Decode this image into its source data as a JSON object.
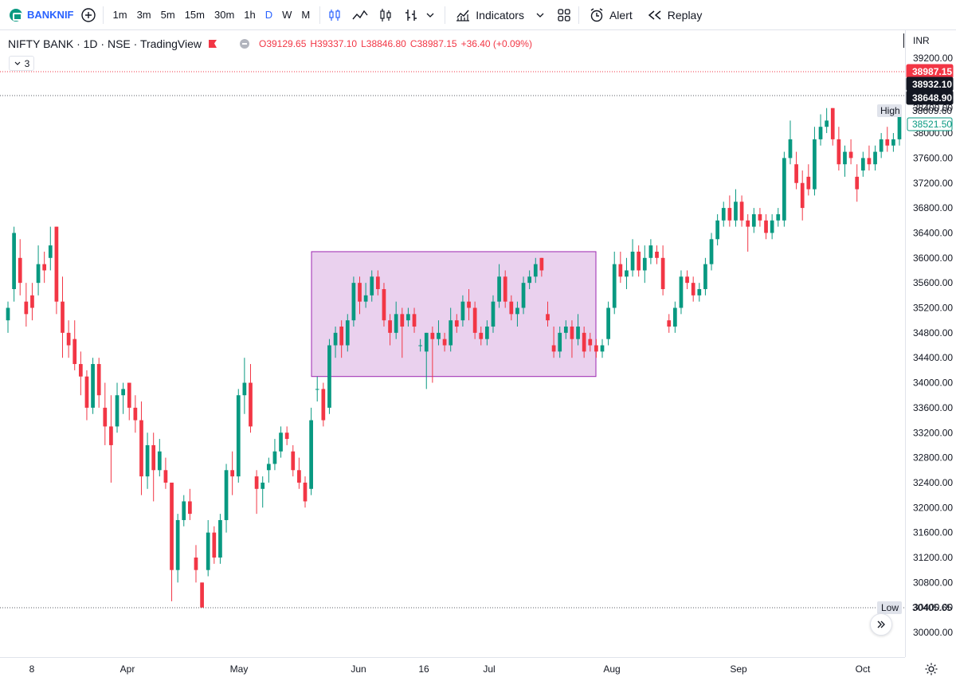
{
  "toolbar": {
    "symbol": "BANKNIF",
    "intervals": [
      "1m",
      "3m",
      "5m",
      "15m",
      "30m",
      "1h",
      "D",
      "W",
      "M"
    ],
    "active_interval": "D",
    "indicators_label": "Indicators",
    "alert_label": "Alert",
    "replay_label": "Replay"
  },
  "legend": {
    "title": "NIFTY BANK · 1D · NSE · TradingView",
    "open": "O39129.65",
    "high": "H39337.10",
    "low": "L38846.80",
    "close": "C38987.15",
    "change": "+36.40 (+0.09%)",
    "collapse_count": "3"
  },
  "price_axis": {
    "currency": "INR",
    "last_price_label": "38987.15",
    "label_2": "38932.10",
    "label_3": "38648.90",
    "high_tag": "High",
    "high_value": "38609.60",
    "green_label": "38521.50",
    "low_tag": "Low",
    "low_value": "30405.65"
  },
  "colors": {
    "up": "#089981",
    "down": "#f23645",
    "rect_fill": "#e1bee7",
    "rect_border": "#9c27b0",
    "accent": "#2962ff"
  },
  "chart_data": {
    "type": "candlestick",
    "yticks": [
      39200,
      38800,
      38400,
      38000,
      37600,
      37200,
      36800,
      36400,
      36000,
      35600,
      35200,
      34800,
      34400,
      34000,
      33600,
      33200,
      32800,
      32400,
      32000,
      31600,
      31200,
      30800,
      30400,
      30000
    ],
    "ylim": [
      29800,
      39400
    ],
    "xticks": [
      "8",
      "Apr",
      "May",
      "Jun",
      "16",
      "Jul",
      "Aug",
      "Sep",
      "Oct"
    ],
    "annotations": [
      {
        "type": "rectangle",
        "from_price": 34100,
        "to_price": 36100
      }
    ],
    "candles": [
      {
        "o": 35000,
        "h": 35300,
        "l": 34800,
        "c": 35200
      },
      {
        "o": 35500,
        "h": 36500,
        "l": 35300,
        "c": 36400
      },
      {
        "o": 36000,
        "h": 36300,
        "l": 35400,
        "c": 35600
      },
      {
        "o": 35300,
        "h": 35600,
        "l": 34900,
        "c": 35100
      },
      {
        "o": 35400,
        "h": 35600,
        "l": 35000,
        "c": 35200
      },
      {
        "o": 35600,
        "h": 36200,
        "l": 35400,
        "c": 35900
      },
      {
        "o": 35900,
        "h": 36100,
        "l": 35600,
        "c": 35800
      },
      {
        "o": 36000,
        "h": 36500,
        "l": 35800,
        "c": 36200
      },
      {
        "o": 36500,
        "h": 36500,
        "l": 35100,
        "c": 35300
      },
      {
        "o": 35300,
        "h": 35700,
        "l": 34400,
        "c": 34800
      },
      {
        "o": 34800,
        "h": 35000,
        "l": 34400,
        "c": 34600
      },
      {
        "o": 34700,
        "h": 35000,
        "l": 34200,
        "c": 34300
      },
      {
        "o": 34300,
        "h": 34500,
        "l": 33800,
        "c": 34100
      },
      {
        "o": 34100,
        "h": 34200,
        "l": 33400,
        "c": 33600
      },
      {
        "o": 33600,
        "h": 34400,
        "l": 33500,
        "c": 34300
      },
      {
        "o": 34300,
        "h": 34400,
        "l": 33600,
        "c": 33800
      },
      {
        "o": 33600,
        "h": 34000,
        "l": 33000,
        "c": 33300
      },
      {
        "o": 33300,
        "h": 33800,
        "l": 32400,
        "c": 33000
      },
      {
        "o": 33300,
        "h": 34000,
        "l": 33200,
        "c": 33800
      },
      {
        "o": 33800,
        "h": 34000,
        "l": 33500,
        "c": 33900
      },
      {
        "o": 34000,
        "h": 34000,
        "l": 33400,
        "c": 33600
      },
      {
        "o": 33600,
        "h": 33800,
        "l": 33200,
        "c": 33400
      },
      {
        "o": 33400,
        "h": 33700,
        "l": 32200,
        "c": 32500
      },
      {
        "o": 32500,
        "h": 33200,
        "l": 32300,
        "c": 33000
      },
      {
        "o": 33000,
        "h": 33200,
        "l": 32100,
        "c": 32600
      },
      {
        "o": 32600,
        "h": 33100,
        "l": 32500,
        "c": 32900
      },
      {
        "o": 32600,
        "h": 32800,
        "l": 32300,
        "c": 32400
      },
      {
        "o": 32400,
        "h": 32400,
        "l": 30500,
        "c": 31000
      },
      {
        "o": 31000,
        "h": 31900,
        "l": 30800,
        "c": 31800
      },
      {
        "o": 31800,
        "h": 32200,
        "l": 31700,
        "c": 32100
      },
      {
        "o": 32100,
        "h": 32300,
        "l": 31800,
        "c": 31900
      },
      {
        "o": 31200,
        "h": 31400,
        "l": 30800,
        "c": 31000
      },
      {
        "o": 30800,
        "h": 30800,
        "l": 30400,
        "c": 30400
      },
      {
        "o": 31000,
        "h": 31800,
        "l": 30900,
        "c": 31600
      },
      {
        "o": 31600,
        "h": 31700,
        "l": 31100,
        "c": 31200
      },
      {
        "o": 31200,
        "h": 31900,
        "l": 31100,
        "c": 31800
      },
      {
        "o": 31800,
        "h": 32700,
        "l": 31600,
        "c": 32600
      },
      {
        "o": 32600,
        "h": 32900,
        "l": 32200,
        "c": 32500
      },
      {
        "o": 32500,
        "h": 33900,
        "l": 32400,
        "c": 33800
      },
      {
        "o": 33800,
        "h": 34400,
        "l": 33500,
        "c": 34000
      },
      {
        "o": 34000,
        "h": 34300,
        "l": 33200,
        "c": 33300
      },
      {
        "o": 32500,
        "h": 32600,
        "l": 31900,
        "c": 32300
      },
      {
        "o": 32300,
        "h": 32500,
        "l": 32000,
        "c": 32400
      },
      {
        "o": 32600,
        "h": 32800,
        "l": 32400,
        "c": 32700
      },
      {
        "o": 32700,
        "h": 33100,
        "l": 32600,
        "c": 32900
      },
      {
        "o": 32900,
        "h": 33300,
        "l": 32800,
        "c": 33200
      },
      {
        "o": 33200,
        "h": 33300,
        "l": 33000,
        "c": 33100
      },
      {
        "o": 32900,
        "h": 33000,
        "l": 32500,
        "c": 32600
      },
      {
        "o": 32600,
        "h": 32800,
        "l": 32300,
        "c": 32400
      },
      {
        "o": 32400,
        "h": 32500,
        "l": 32000,
        "c": 32100
      },
      {
        "o": 32300,
        "h": 33600,
        "l": 32200,
        "c": 33400
      },
      {
        "o": 33900,
        "h": 34100,
        "l": 33700,
        "c": 33900
      },
      {
        "o": 33900,
        "h": 34000,
        "l": 33300,
        "c": 33400
      },
      {
        "o": 33600,
        "h": 34700,
        "l": 33500,
        "c": 34600
      },
      {
        "o": 34600,
        "h": 34900,
        "l": 34400,
        "c": 34800
      },
      {
        "o": 34900,
        "h": 35000,
        "l": 34400,
        "c": 34600
      },
      {
        "o": 34600,
        "h": 35100,
        "l": 34500,
        "c": 35000
      },
      {
        "o": 35000,
        "h": 35700,
        "l": 34900,
        "c": 35600
      },
      {
        "o": 35600,
        "h": 35700,
        "l": 35100,
        "c": 35300
      },
      {
        "o": 35300,
        "h": 35600,
        "l": 35200,
        "c": 35400
      },
      {
        "o": 35400,
        "h": 35800,
        "l": 35300,
        "c": 35700
      },
      {
        "o": 35700,
        "h": 35800,
        "l": 35400,
        "c": 35500
      },
      {
        "o": 35500,
        "h": 35600,
        "l": 34900,
        "c": 35000
      },
      {
        "o": 35000,
        "h": 35100,
        "l": 34600,
        "c": 34800
      },
      {
        "o": 34800,
        "h": 35300,
        "l": 34700,
        "c": 35100
      },
      {
        "o": 35100,
        "h": 35200,
        "l": 34400,
        "c": 34900
      },
      {
        "o": 35000,
        "h": 35200,
        "l": 34900,
        "c": 35100
      },
      {
        "o": 35100,
        "h": 35200,
        "l": 34800,
        "c": 34900
      },
      {
        "o": 34600,
        "h": 34700,
        "l": 34500,
        "c": 34600
      },
      {
        "o": 34500,
        "h": 34800,
        "l": 33900,
        "c": 34800
      },
      {
        "o": 34800,
        "h": 34900,
        "l": 34000,
        "c": 34700
      },
      {
        "o": 34700,
        "h": 35000,
        "l": 34600,
        "c": 34800
      },
      {
        "o": 34700,
        "h": 34800,
        "l": 34500,
        "c": 34600
      },
      {
        "o": 34600,
        "h": 35200,
        "l": 34500,
        "c": 35000
      },
      {
        "o": 35000,
        "h": 35100,
        "l": 34800,
        "c": 34900
      },
      {
        "o": 35000,
        "h": 35400,
        "l": 34900,
        "c": 35300
      },
      {
        "o": 35300,
        "h": 35500,
        "l": 35000,
        "c": 35200
      },
      {
        "o": 35200,
        "h": 35300,
        "l": 34700,
        "c": 34800
      },
      {
        "o": 34800,
        "h": 34900,
        "l": 34600,
        "c": 34700
      },
      {
        "o": 34700,
        "h": 35000,
        "l": 34600,
        "c": 34900
      },
      {
        "o": 34900,
        "h": 35400,
        "l": 34800,
        "c": 35300
      },
      {
        "o": 35300,
        "h": 35900,
        "l": 35200,
        "c": 35700
      },
      {
        "o": 35700,
        "h": 35800,
        "l": 35200,
        "c": 35300
      },
      {
        "o": 35300,
        "h": 35400,
        "l": 35000,
        "c": 35100
      },
      {
        "o": 35100,
        "h": 35300,
        "l": 34900,
        "c": 35200
      },
      {
        "o": 35200,
        "h": 35700,
        "l": 35100,
        "c": 35600
      },
      {
        "o": 35600,
        "h": 35800,
        "l": 35500,
        "c": 35700
      },
      {
        "o": 35700,
        "h": 36000,
        "l": 35600,
        "c": 35900
      },
      {
        "o": 36000,
        "h": 36000,
        "l": 35700,
        "c": 35800
      },
      {
        "o": 35100,
        "h": 35300,
        "l": 34900,
        "c": 35000
      },
      {
        "o": 34600,
        "h": 34900,
        "l": 34400,
        "c": 34500
      },
      {
        "o": 34500,
        "h": 34900,
        "l": 34400,
        "c": 34800
      },
      {
        "o": 34800,
        "h": 35000,
        "l": 34700,
        "c": 34900
      },
      {
        "o": 34900,
        "h": 35000,
        "l": 34400,
        "c": 34700
      },
      {
        "o": 34700,
        "h": 35100,
        "l": 34600,
        "c": 34900
      },
      {
        "o": 34800,
        "h": 34900,
        "l": 34400,
        "c": 34500
      },
      {
        "o": 34700,
        "h": 34800,
        "l": 34500,
        "c": 34600
      },
      {
        "o": 34600,
        "h": 34700,
        "l": 34400,
        "c": 34500
      },
      {
        "o": 34500,
        "h": 34700,
        "l": 34400,
        "c": 34600
      },
      {
        "o": 34700,
        "h": 35300,
        "l": 34600,
        "c": 35200
      },
      {
        "o": 35200,
        "h": 36100,
        "l": 35100,
        "c": 35900
      },
      {
        "o": 35900,
        "h": 36100,
        "l": 35600,
        "c": 35700
      },
      {
        "o": 35700,
        "h": 36000,
        "l": 35500,
        "c": 35800
      },
      {
        "o": 35800,
        "h": 36300,
        "l": 35700,
        "c": 36100
      },
      {
        "o": 36100,
        "h": 36200,
        "l": 35700,
        "c": 35800
      },
      {
        "o": 35800,
        "h": 36200,
        "l": 35600,
        "c": 36000
      },
      {
        "o": 36000,
        "h": 36300,
        "l": 35900,
        "c": 36200
      },
      {
        "o": 36100,
        "h": 36200,
        "l": 35900,
        "c": 36000
      },
      {
        "o": 36000,
        "h": 36200,
        "l": 35400,
        "c": 35500
      },
      {
        "o": 35000,
        "h": 35100,
        "l": 34800,
        "c": 34900
      },
      {
        "o": 34900,
        "h": 35300,
        "l": 34800,
        "c": 35200
      },
      {
        "o": 35200,
        "h": 35800,
        "l": 35100,
        "c": 35700
      },
      {
        "o": 35700,
        "h": 35800,
        "l": 35500,
        "c": 35600
      },
      {
        "o": 35600,
        "h": 35700,
        "l": 35300,
        "c": 35400
      },
      {
        "o": 35400,
        "h": 35600,
        "l": 35300,
        "c": 35500
      },
      {
        "o": 35500,
        "h": 36000,
        "l": 35400,
        "c": 35900
      },
      {
        "o": 35900,
        "h": 36400,
        "l": 35800,
        "c": 36300
      },
      {
        "o": 36300,
        "h": 36700,
        "l": 36200,
        "c": 36600
      },
      {
        "o": 36600,
        "h": 36900,
        "l": 36500,
        "c": 36800
      },
      {
        "o": 36800,
        "h": 37000,
        "l": 36500,
        "c": 36600
      },
      {
        "o": 36600,
        "h": 37100,
        "l": 36500,
        "c": 36900
      },
      {
        "o": 36900,
        "h": 37000,
        "l": 36500,
        "c": 36600
      },
      {
        "o": 36600,
        "h": 36700,
        "l": 36100,
        "c": 36500
      },
      {
        "o": 36500,
        "h": 36800,
        "l": 36400,
        "c": 36700
      },
      {
        "o": 36700,
        "h": 36800,
        "l": 36500,
        "c": 36600
      },
      {
        "o": 36600,
        "h": 36700,
        "l": 36300,
        "c": 36400
      },
      {
        "o": 36400,
        "h": 36700,
        "l": 36300,
        "c": 36600
      },
      {
        "o": 36600,
        "h": 36800,
        "l": 36500,
        "c": 36700
      },
      {
        "o": 36600,
        "h": 37700,
        "l": 36500,
        "c": 37600
      },
      {
        "o": 37600,
        "h": 38200,
        "l": 37500,
        "c": 37900
      },
      {
        "o": 37500,
        "h": 37700,
        "l": 37100,
        "c": 37200
      },
      {
        "o": 37200,
        "h": 37400,
        "l": 36600,
        "c": 36800
      },
      {
        "o": 37300,
        "h": 37500,
        "l": 37000,
        "c": 37100
      },
      {
        "o": 37100,
        "h": 38100,
        "l": 37000,
        "c": 37900
      },
      {
        "o": 37900,
        "h": 38300,
        "l": 37800,
        "c": 38100
      },
      {
        "o": 38100,
        "h": 38400,
        "l": 38000,
        "c": 38200
      },
      {
        "o": 38400,
        "h": 38400,
        "l": 37800,
        "c": 37900
      },
      {
        "o": 37900,
        "h": 38100,
        "l": 37400,
        "c": 37500
      },
      {
        "o": 37500,
        "h": 37800,
        "l": 37300,
        "c": 37700
      },
      {
        "o": 37700,
        "h": 37900,
        "l": 37500,
        "c": 37600
      },
      {
        "o": 37300,
        "h": 37500,
        "l": 36900,
        "c": 37100
      },
      {
        "o": 37400,
        "h": 37700,
        "l": 37300,
        "c": 37600
      },
      {
        "o": 37600,
        "h": 37800,
        "l": 37400,
        "c": 37500
      },
      {
        "o": 37500,
        "h": 37800,
        "l": 37400,
        "c": 37700
      },
      {
        "o": 37700,
        "h": 38000,
        "l": 37600,
        "c": 37900
      },
      {
        "o": 37900,
        "h": 38100,
        "l": 37700,
        "c": 37800
      },
      {
        "o": 37800,
        "h": 38000,
        "l": 37700,
        "c": 37900
      },
      {
        "o": 37900,
        "h": 38400,
        "l": 37800,
        "c": 38300
      }
    ]
  }
}
